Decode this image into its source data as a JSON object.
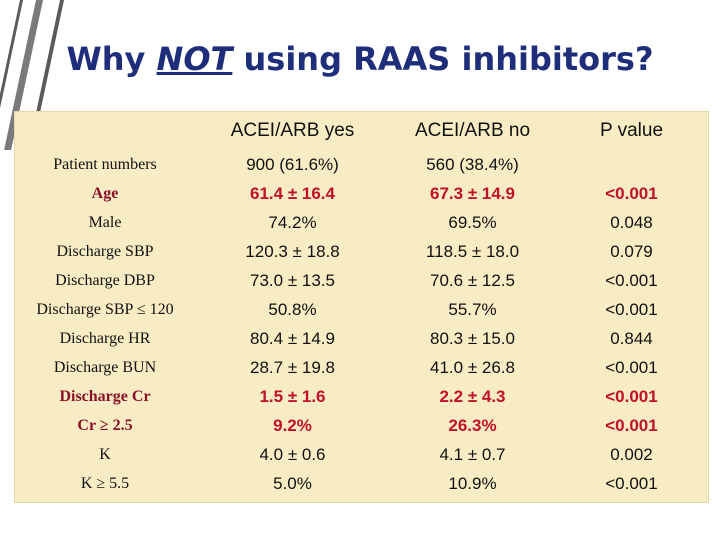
{
  "slide": {
    "title_pre": "Why ",
    "title_em": "NOT",
    "title_post": " using RAAS inhibitors?"
  },
  "table": {
    "headers": [
      "",
      "ACEI/ARB yes",
      "ACEI/ARB no",
      "P value"
    ],
    "rows": [
      {
        "label": "Patient numbers",
        "yes": "900 (61.6%)",
        "no": "560 (38.4%)",
        "p": ""
      },
      {
        "label": "Age",
        "yes": "61.4 ± 16.4",
        "no": "67.3 ± 14.9",
        "p": "<0.001"
      },
      {
        "label": "Male",
        "yes": "74.2%",
        "no": "69.5%",
        "p": "0.048"
      },
      {
        "label": "Discharge SBP",
        "yes": "120.3 ± 18.8",
        "no": "118.5 ± 18.0",
        "p": "0.079"
      },
      {
        "label": "Discharge DBP",
        "yes": "73.0 ± 13.5",
        "no": "70.6 ± 12.5",
        "p": "<0.001"
      },
      {
        "label": "Discharge SBP ≤ 120",
        "yes": "50.8%",
        "no": "55.7%",
        "p": "<0.001"
      },
      {
        "label": "Discharge HR",
        "yes": "80.4 ± 14.9",
        "no": "80.3 ± 15.0",
        "p": "0.844"
      },
      {
        "label": "Discharge BUN",
        "yes": "28.7 ± 19.8",
        "no": "41.0 ± 26.8",
        "p": "<0.001"
      },
      {
        "label": "Discharge Cr",
        "yes": "1.5 ± 1.6",
        "no": "2.2 ± 4.3",
        "p": "<0.001"
      },
      {
        "label": "Cr ≥ 2.5",
        "yes": "9.2%",
        "no": "26.3%",
        "p": "<0.001"
      },
      {
        "label": "K",
        "yes": "4.0 ± 0.6",
        "no": "4.1 ± 0.7",
        "p": "0.002"
      },
      {
        "label": "K ≥ 5.5",
        "yes": "5.0%",
        "no": "10.9%",
        "p": "<0.001"
      }
    ]
  },
  "colors": {
    "title": "#1f2e7a",
    "highlight": "#c0102a",
    "panel": "#f8ecc4"
  }
}
